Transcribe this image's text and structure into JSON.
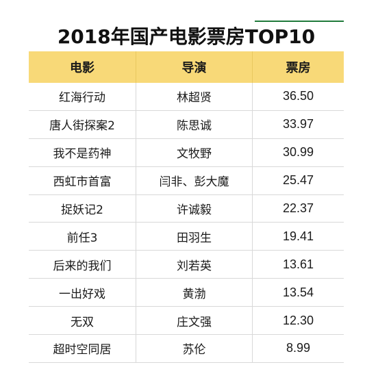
{
  "title": "2018年国产电影票房TOP10",
  "colors": {
    "header_bg": "#f8d978",
    "accent_line": "#1f7a3a"
  },
  "headers": [
    "电影",
    "导演",
    "票房"
  ],
  "rows": [
    {
      "movie": "红海行动",
      "director": "林超贤",
      "box_office": "36.50"
    },
    {
      "movie": "唐人街探案2",
      "director": "陈思诚",
      "box_office": "33.97"
    },
    {
      "movie": "我不是药神",
      "director": "文牧野",
      "box_office": "30.99"
    },
    {
      "movie": "西虹市首富",
      "director": "闫非、彭大魔",
      "box_office": "25.47"
    },
    {
      "movie": "捉妖记2",
      "director": "许诚毅",
      "box_office": "22.37"
    },
    {
      "movie": "前任3",
      "director": "田羽生",
      "box_office": "19.41"
    },
    {
      "movie": "后来的我们",
      "director": "刘若英",
      "box_office": "13.61"
    },
    {
      "movie": "一出好戏",
      "director": "黄渤",
      "box_office": "13.54"
    },
    {
      "movie": "无双",
      "director": "庄文强",
      "box_office": "12.30"
    },
    {
      "movie": "超时空同居",
      "director": "苏伦",
      "box_office": "8.99"
    }
  ]
}
